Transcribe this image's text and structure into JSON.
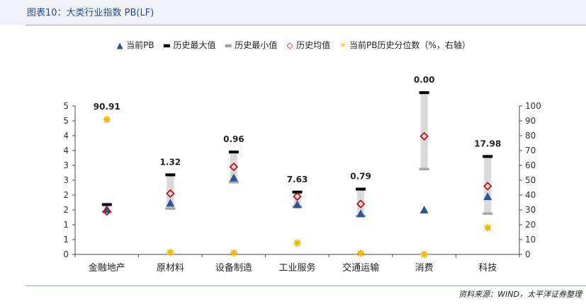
{
  "title": "图表10：大类行业指数 PB(LF)",
  "source": "资料来源：WIND，太平洋证券整理",
  "legend": [
    {
      "label": "当前PB",
      "symbol": "▲",
      "color": "#2e5597"
    },
    {
      "label": "历史最大值",
      "symbol": "▬",
      "color": "#000000"
    },
    {
      "label": "历史最小值",
      "symbol": "▬",
      "color": "#a6a6a6"
    },
    {
      "label": "历史均值",
      "symbol": "◇",
      "color": "#c00000"
    },
    {
      "label": "当前PB历史分位数（%，右轴）",
      "symbol": "✳",
      "color": "#f2b800"
    }
  ],
  "chart_data": {
    "type": "scatter",
    "categories": [
      "金融地产",
      "原材料",
      "设备制造",
      "工业服务",
      "交通运输",
      "消费",
      "科技"
    ],
    "left_ticks": [
      "0",
      "1",
      "1",
      "2",
      "2",
      "3",
      "3",
      "4",
      "4",
      "5",
      "5"
    ],
    "left_ylim": [
      0,
      5
    ],
    "right_ticks": [
      "0",
      "10",
      "20",
      "30",
      "40",
      "50",
      "60",
      "70",
      "80",
      "90",
      "100"
    ],
    "right_ylim": [
      0,
      100
    ],
    "series": [
      {
        "name": "当前PB",
        "values": [
          1.52,
          1.73,
          2.58,
          1.68,
          1.37,
          1.5,
          1.95
        ]
      },
      {
        "name": "历史最大值",
        "values": [
          1.68,
          2.68,
          3.45,
          2.1,
          2.2,
          5.45,
          3.3
        ]
      },
      {
        "name": "历史最小值",
        "values": [
          1.44,
          1.55,
          2.44,
          1.62,
          1.3,
          2.88,
          1.38
        ]
      },
      {
        "name": "历史均值",
        "values": [
          1.45,
          2.05,
          2.95,
          1.95,
          1.7,
          3.98,
          2.3
        ]
      },
      {
        "name": "当前PB历史分位数（%，右轴）",
        "values": [
          90.91,
          1.32,
          0.96,
          7.63,
          0.79,
          0.0,
          17.98
        ]
      }
    ],
    "percentile_labels": [
      "90.91",
      "1.32",
      "0.96",
      "7.63",
      "0.79",
      "0.00",
      "17.98"
    ],
    "grid": false,
    "legend_position": "top"
  }
}
